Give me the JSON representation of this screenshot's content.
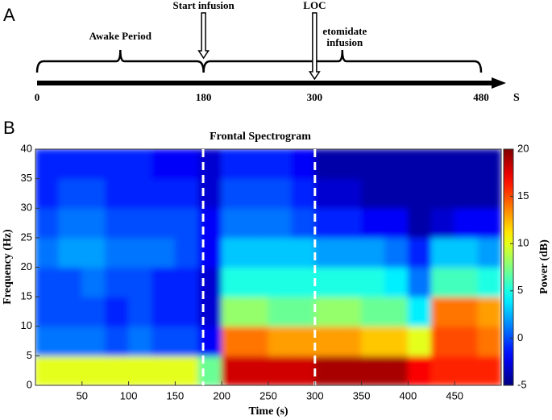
{
  "chart_data": [
    {
      "type": "timeline",
      "panel": "A",
      "xlim": [
        0,
        480
      ],
      "xticks": [
        0,
        180,
        300,
        480
      ],
      "unit": "S",
      "events": [
        {
          "label": "Start infusion",
          "x": 180
        },
        {
          "label": "LOC",
          "x": 300
        }
      ],
      "periods": [
        {
          "label": [
            "Awake Period"
          ],
          "start": 0,
          "end": 180
        },
        {
          "label": [
            "etomidate",
            "infusion"
          ],
          "start": 180,
          "end": 480
        }
      ]
    },
    {
      "type": "heatmap",
      "panel": "B",
      "title": "Frontal Spectrogram",
      "x_label": "Time (s)",
      "y_label": "Frequency (Hz)",
      "xlim": [
        0,
        500
      ],
      "xticks": [
        50,
        100,
        150,
        200,
        250,
        300,
        350,
        400,
        450
      ],
      "ylim": [
        0,
        40
      ],
      "yticks": [
        0,
        5,
        10,
        15,
        20,
        25,
        30,
        35,
        40
      ],
      "x_bins": [
        0,
        25,
        50,
        75,
        100,
        125,
        150,
        175,
        200,
        225,
        250,
        275,
        300,
        325,
        350,
        375,
        400,
        425,
        450,
        475,
        500
      ],
      "y_bins": [
        0,
        5,
        10,
        15,
        20,
        25,
        30,
        35,
        40
      ],
      "z": [
        [
          10,
          10,
          10,
          10,
          10,
          10,
          10,
          7,
          18,
          18,
          18,
          18,
          19,
          19,
          19,
          19,
          17,
          16,
          16,
          16
        ],
        [
          1,
          1,
          1,
          0,
          1,
          0,
          0,
          -2,
          14,
          14,
          13,
          13,
          13,
          13,
          12,
          12,
          10,
          15,
          15,
          14
        ],
        [
          0,
          0,
          0,
          -1,
          0,
          -1,
          -1,
          -3,
          8,
          8,
          7,
          7,
          8,
          8,
          7,
          7,
          4,
          14,
          14,
          13
        ],
        [
          0,
          0,
          1,
          0,
          0,
          -1,
          -1,
          -3,
          5,
          5,
          5,
          5,
          5,
          5,
          5,
          4,
          1,
          6,
          6,
          5
        ],
        [
          1,
          2,
          2,
          1,
          1,
          1,
          0,
          -2,
          3,
          3,
          3,
          3,
          2,
          2,
          2,
          1,
          -1,
          3,
          3,
          2
        ],
        [
          0,
          1,
          1,
          0,
          0,
          0,
          0,
          -2,
          1,
          1,
          1,
          0,
          -1,
          -1,
          -2,
          -2,
          -4,
          -3,
          -2,
          -2
        ],
        [
          -1,
          0,
          0,
          -1,
          -1,
          -1,
          -1,
          -3,
          0,
          0,
          0,
          -1,
          -3,
          -3,
          -4,
          -4,
          -4,
          -4,
          -4,
          -4
        ],
        [
          -1,
          -1,
          -1,
          -1,
          -1,
          -2,
          -2,
          -3,
          -1,
          -1,
          -1,
          -2,
          -4,
          -4,
          -4,
          -4,
          -4,
          -4,
          -4,
          -4
        ]
      ],
      "markers": [
        180,
        300
      ],
      "colorbar": {
        "label": "Power (dB)",
        "lim": [
          -5,
          20
        ],
        "ticks": [
          -5,
          0,
          5,
          10,
          15,
          20
        ],
        "colormap": "jet"
      }
    }
  ]
}
